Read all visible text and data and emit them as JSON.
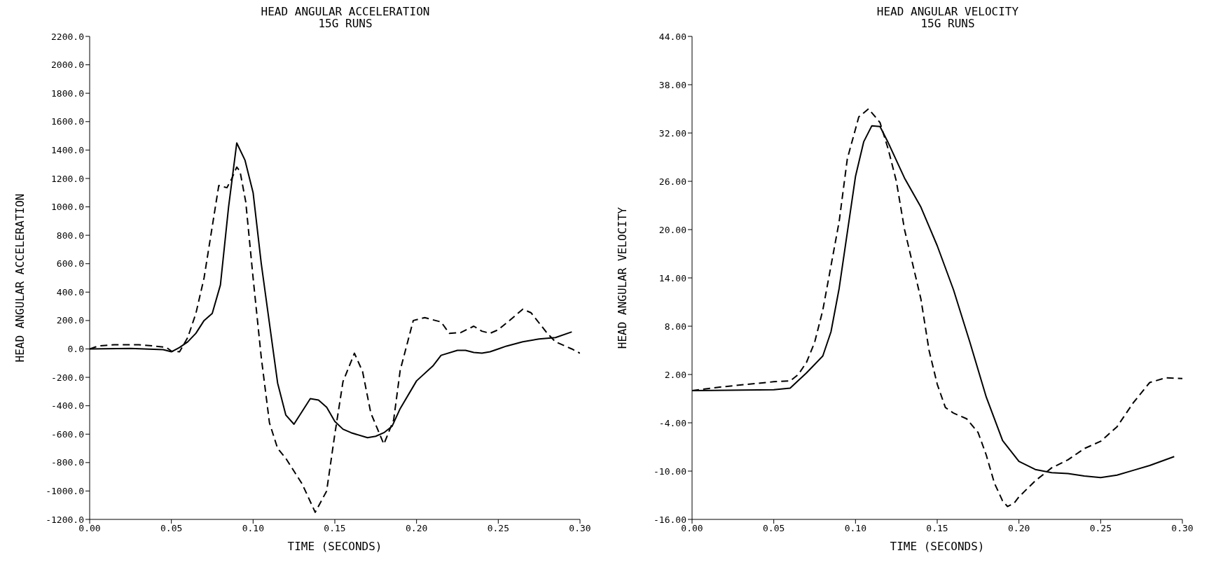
{
  "chart_data": [
    {
      "type": "line",
      "title": "HEAD ANGULAR ACCELERATION",
      "subtitle": "15G RUNS",
      "xlabel": "TIME (SECONDS)",
      "ylabel": "HEAD ANGULAR ACCELERATION",
      "xlim": [
        0,
        0.3
      ],
      "xticks": [
        {
          "value": 0,
          "label": "0.00"
        },
        {
          "value": 0.05,
          "label": "0.05"
        },
        {
          "value": 0.1,
          "label": "0.10"
        },
        {
          "value": 0.15,
          "label": "0.15"
        },
        {
          "value": 0.2,
          "label": "0.20"
        },
        {
          "value": 0.25,
          "label": "0.25"
        },
        {
          "value": 0.3,
          "label": "0.30"
        }
      ],
      "ylim": [
        -1200,
        2200
      ],
      "yticks": [
        {
          "value": -1200,
          "label": "-1200.0"
        },
        {
          "value": -1000,
          "label": "-1000.0"
        },
        {
          "value": -800,
          "label": "-800.0"
        },
        {
          "value": -600,
          "label": "-600.0"
        },
        {
          "value": -400,
          "label": "-400.0"
        },
        {
          "value": -200,
          "label": "-200.0"
        },
        {
          "value": 0,
          "label": "0.0"
        },
        {
          "value": 200,
          "label": "200.0"
        },
        {
          "value": 400,
          "label": "400.0"
        },
        {
          "value": 600,
          "label": "600.0"
        },
        {
          "value": 800,
          "label": "800.0"
        },
        {
          "value": 1000,
          "label": "1000.0"
        },
        {
          "value": 1200,
          "label": "1200.0"
        },
        {
          "value": 1400,
          "label": "1400.0"
        },
        {
          "value": 1600,
          "label": "1600.0"
        },
        {
          "value": 1800,
          "label": "1800.0"
        },
        {
          "value": 2000,
          "label": "2000.0"
        },
        {
          "value": 2200,
          "label": "2200.0"
        }
      ],
      "series": [
        {
          "color": "#000000",
          "line_style": "solid",
          "x": [
            0,
            0.025,
            0.045,
            0.05,
            0.055,
            0.06,
            0.065,
            0.07,
            0.075,
            0.08,
            0.085,
            0.09,
            0.095,
            0.1,
            0.105,
            0.115,
            0.12,
            0.125,
            0.135,
            0.14,
            0.145,
            0.15,
            0.155,
            0.16,
            0.17,
            0.175,
            0.18,
            0.185,
            0.19,
            0.2,
            0.21,
            0.215,
            0.225,
            0.23,
            0.235,
            0.24,
            0.245,
            0.25,
            0.255,
            0.265,
            0.275,
            0.285,
            0.295
          ],
          "values": [
            0,
            3,
            -5,
            -20,
            10,
            50,
            110,
            200,
            250,
            450,
            1000,
            1450,
            1330,
            1100,
            600,
            -240,
            -465,
            -530,
            -350,
            -360,
            -410,
            -510,
            -565,
            -590,
            -625,
            -615,
            -590,
            -545,
            -420,
            -225,
            -120,
            -45,
            -10,
            -10,
            -25,
            -30,
            -20,
            0,
            20,
            50,
            70,
            80,
            120
          ]
        },
        {
          "color": "#000000",
          "line_style": "dashed",
          "x": [
            0,
            0.005,
            0.015,
            0.03,
            0.04,
            0.047,
            0.05,
            0.055,
            0.06,
            0.065,
            0.07,
            0.079,
            0.084,
            0.087,
            0.09,
            0.092,
            0.0955,
            0.1,
            0.105,
            0.11,
            0.115,
            0.12,
            0.13,
            0.138,
            0.145,
            0.15,
            0.155,
            0.162,
            0.167,
            0.172,
            0.18,
            0.186,
            0.19,
            0.198,
            0.205,
            0.215,
            0.22,
            0.227,
            0.235,
            0.24,
            0.245,
            0.25,
            0.26,
            0.265,
            0.27,
            0.28,
            0.285,
            0.295,
            0.3
          ],
          "values": [
            0,
            20,
            30,
            30,
            20,
            10,
            -15,
            -20,
            80,
            250,
            500,
            1150,
            1135,
            1200,
            1280,
            1250,
            1035,
            500,
            -60,
            -520,
            -700,
            -770,
            -950,
            -1150,
            -1000,
            -600,
            -230,
            -30,
            -160,
            -450,
            -670,
            -500,
            -150,
            200,
            220,
            190,
            110,
            115,
            160,
            125,
            110,
            135,
            230,
            280,
            255,
            110,
            50,
            0,
            -30
          ]
        }
      ]
    },
    {
      "type": "line",
      "title": "HEAD ANGULAR VELOCITY",
      "subtitle": "15G RUNS",
      "xlabel": "TIME (SECONDS)",
      "ylabel": "HEAD ANGULAR VELOCITY",
      "xlim": [
        0,
        0.3
      ],
      "xticks": [
        {
          "value": 0,
          "label": "0.00"
        },
        {
          "value": 0.05,
          "label": "0.05"
        },
        {
          "value": 0.1,
          "label": "0.10"
        },
        {
          "value": 0.15,
          "label": "0.15"
        },
        {
          "value": 0.2,
          "label": "0.20"
        },
        {
          "value": 0.25,
          "label": "0.25"
        },
        {
          "value": 0.3,
          "label": "0.30"
        }
      ],
      "ylim": [
        -16,
        44
      ],
      "yticks": [
        {
          "value": -16,
          "label": "-16.00"
        },
        {
          "value": -10,
          "label": "-10.00"
        },
        {
          "value": -4,
          "label": "-4.00"
        },
        {
          "value": 2,
          "label": "2.00"
        },
        {
          "value": 8,
          "label": "8.00"
        },
        {
          "value": 14,
          "label": "14.00"
        },
        {
          "value": 20,
          "label": "20.00"
        },
        {
          "value": 26,
          "label": "26.00"
        },
        {
          "value": 32,
          "label": "32.00"
        },
        {
          "value": 38,
          "label": "38.00"
        },
        {
          "value": 44,
          "label": "44.00"
        }
      ],
      "series": [
        {
          "color": "#000000",
          "line_style": "solid",
          "x": [
            0,
            0.05,
            0.06,
            0.07,
            0.08,
            0.085,
            0.09,
            0.1,
            0.105,
            0.11,
            0.115,
            0.12,
            0.13,
            0.14,
            0.145,
            0.15,
            0.16,
            0.17,
            0.18,
            0.19,
            0.2,
            0.21,
            0.22,
            0.23,
            0.24,
            0.25,
            0.26,
            0.27,
            0.28,
            0.295
          ],
          "values": [
            0,
            0.1,
            0.3,
            2.2,
            4.3,
            7.3,
            12.7,
            26.6,
            30.9,
            32.9,
            32.8,
            30.8,
            26.4,
            22.8,
            20.4,
            18,
            12.5,
            6,
            -0.8,
            -6.2,
            -8.8,
            -9.8,
            -10.2,
            -10.3,
            -10.6,
            -10.8,
            -10.5,
            -9.9,
            -9.3,
            -8.2
          ]
        },
        {
          "color": "#000000",
          "line_style": "dashed",
          "x": [
            0,
            0.02,
            0.04,
            0.05,
            0.06,
            0.065,
            0.07,
            0.075,
            0.08,
            0.085,
            0.09,
            0.095,
            0.1,
            0.102,
            0.108,
            0.115,
            0.12,
            0.125,
            0.13,
            0.14,
            0.145,
            0.15,
            0.155,
            0.16,
            0.168,
            0.175,
            0.18,
            0.185,
            0.19,
            0.193,
            0.197,
            0.2,
            0.21,
            0.22,
            0.23,
            0.24,
            0.25,
            0.26,
            0.27,
            0.28,
            0.29,
            0.3
          ],
          "values": [
            0,
            0.5,
            0.9,
            1.1,
            1.2,
            2,
            3.5,
            6,
            10,
            15.5,
            21,
            28.8,
            32.5,
            34,
            35,
            33.3,
            30,
            26,
            20,
            11.4,
            5,
            0.8,
            -2.1,
            -2.8,
            -3.5,
            -5.2,
            -8,
            -11.5,
            -13.7,
            -14.4,
            -14,
            -13.2,
            -11.2,
            -9.6,
            -8.6,
            -7.2,
            -6.3,
            -4.5,
            -1.5,
            1,
            1.6,
            1.5
          ]
        }
      ]
    }
  ]
}
